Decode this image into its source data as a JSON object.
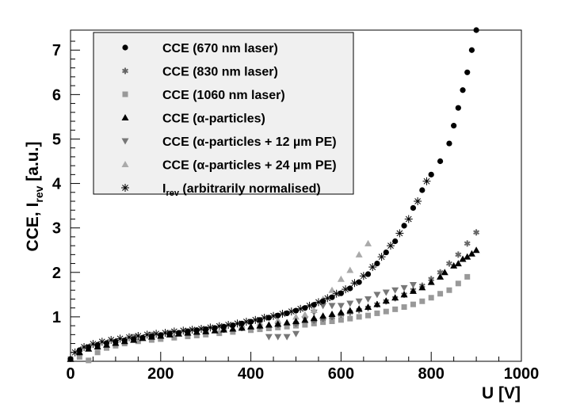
{
  "chart_data": {
    "type": "scatter",
    "xlabel": "U [V]",
    "ylabel": "CCE, I_rev [a.u.]",
    "ylabel_main": "CCE, I",
    "ylabel_sub": "rev",
    "ylabel_unit": " [a.u.]",
    "xlim": [
      0,
      1000
    ],
    "ylim": [
      0,
      7.45
    ],
    "xticks": [
      "0",
      "200",
      "400",
      "600",
      "800",
      "1000"
    ],
    "yticks": [
      "1",
      "2",
      "3",
      "4",
      "5",
      "6",
      "7"
    ],
    "grid": false,
    "legend_position": "top-left",
    "series": [
      {
        "name": "CCE (670 nm laser)",
        "marker": "circle",
        "color": "#000000",
        "x": [
          0,
          20,
          40,
          60,
          80,
          100,
          120,
          140,
          160,
          180,
          200,
          220,
          240,
          260,
          280,
          300,
          320,
          340,
          360,
          380,
          400,
          420,
          440,
          460,
          480,
          500,
          520,
          540,
          560,
          580,
          600,
          620,
          640,
          660,
          680,
          700,
          720,
          740,
          760,
          780,
          800,
          820,
          840,
          850,
          860,
          870,
          880,
          890,
          900
        ],
        "y": [
          0.05,
          0.25,
          0.32,
          0.37,
          0.41,
          0.44,
          0.47,
          0.5,
          0.53,
          0.56,
          0.59,
          0.62,
          0.64,
          0.67,
          0.7,
          0.72,
          0.75,
          0.78,
          0.81,
          0.85,
          0.89,
          0.93,
          0.98,
          1.03,
          1.08,
          1.14,
          1.2,
          1.27,
          1.35,
          1.44,
          1.53,
          1.64,
          1.78,
          1.96,
          2.2,
          2.45,
          2.7,
          3.05,
          3.45,
          3.85,
          4.2,
          4.5,
          4.9,
          5.3,
          5.7,
          6.1,
          6.5,
          7.0,
          7.45
        ]
      },
      {
        "name": "CCE (830 nm laser)",
        "marker": "star",
        "color": "#666666",
        "x": [
          20,
          60,
          100,
          140,
          180,
          220,
          260,
          300,
          340,
          380,
          420,
          460,
          500,
          540,
          560,
          580,
          600,
          620,
          640,
          660,
          680,
          700,
          720,
          740,
          760,
          780,
          800,
          820,
          840,
          860,
          880,
          900
        ],
        "y": [
          0.2,
          0.35,
          0.45,
          0.52,
          0.57,
          0.61,
          0.65,
          0.68,
          0.71,
          0.75,
          0.79,
          0.82,
          0.85,
          0.92,
          0.96,
          1.0,
          1.05,
          1.1,
          1.15,
          1.2,
          1.28,
          1.35,
          1.42,
          1.5,
          1.6,
          1.7,
          1.85,
          2.0,
          2.2,
          2.4,
          2.65,
          2.9
        ]
      },
      {
        "name": "CCE (1060 nm laser)",
        "marker": "square",
        "color": "#999999",
        "x": [
          0,
          20,
          40,
          60,
          80,
          100,
          120,
          150,
          180,
          200,
          230,
          260,
          280,
          300,
          330,
          360,
          400,
          420,
          440,
          460,
          480,
          500,
          520,
          540,
          560,
          580,
          600,
          620,
          640,
          660,
          680,
          700,
          720,
          740,
          760,
          780,
          800,
          820,
          840,
          860,
          880
        ],
        "y": [
          0.05,
          0.1,
          0.02,
          0.2,
          0.3,
          0.35,
          0.4,
          0.45,
          0.48,
          0.5,
          0.53,
          0.56,
          0.58,
          0.6,
          0.63,
          0.66,
          0.7,
          0.72,
          0.74,
          0.76,
          0.78,
          0.8,
          0.82,
          0.85,
          0.88,
          0.9,
          0.93,
          0.96,
          1.0,
          1.03,
          1.08,
          1.12,
          1.17,
          1.22,
          1.28,
          1.35,
          1.43,
          1.52,
          1.6,
          1.75,
          1.9
        ]
      },
      {
        "name": "CCE (α-particles)",
        "marker": "triangle-up",
        "color": "#000000",
        "x": [
          0,
          20,
          40,
          60,
          80,
          100,
          120,
          140,
          160,
          180,
          200,
          220,
          240,
          260,
          280,
          300,
          320,
          340,
          360,
          380,
          400,
          420,
          440,
          460,
          480,
          500,
          520,
          540,
          560,
          580,
          600,
          620,
          640,
          660,
          680,
          700,
          720,
          740,
          760,
          780,
          800,
          820,
          830,
          850,
          860,
          870,
          880,
          890,
          900
        ],
        "y": [
          0.05,
          0.2,
          0.28,
          0.33,
          0.37,
          0.41,
          0.45,
          0.48,
          0.52,
          0.55,
          0.57,
          0.6,
          0.62,
          0.64,
          0.66,
          0.67,
          0.69,
          0.71,
          0.73,
          0.75,
          0.78,
          0.8,
          0.82,
          0.84,
          0.87,
          0.9,
          0.93,
          0.97,
          1.02,
          1.06,
          1.1,
          1.14,
          1.18,
          1.22,
          1.28,
          1.36,
          1.43,
          1.5,
          1.58,
          1.66,
          1.78,
          1.9,
          2.0,
          2.15,
          2.2,
          2.3,
          2.35,
          2.42,
          2.5
        ]
      },
      {
        "name": "CCE (α-particles + 12 µm PE)",
        "marker": "triangle-down",
        "color": "#777777",
        "x": [
          140,
          180,
          220,
          260,
          300,
          340,
          380,
          420,
          440,
          460,
          480,
          500,
          520,
          540,
          560,
          580,
          600,
          620,
          640,
          660,
          680,
          700,
          720,
          740,
          760
        ],
        "y": [
          0.55,
          0.6,
          0.64,
          0.68,
          0.72,
          0.76,
          0.8,
          0.85,
          0.55,
          0.55,
          0.55,
          0.62,
          0.95,
          1.1,
          1.25,
          1.25,
          1.25,
          1.3,
          1.35,
          1.4,
          1.5,
          1.55,
          1.6,
          1.65,
          1.72
        ]
      },
      {
        "name": "CCE (α-particles + 24 µm PE)",
        "marker": "triangle-up",
        "color": "#aaaaaa",
        "x": [
          140,
          180,
          220,
          260,
          300,
          340,
          380,
          420,
          460,
          500,
          520,
          540,
          560,
          580,
          600,
          620,
          640,
          660
        ],
        "y": [
          0.52,
          0.58,
          0.63,
          0.67,
          0.71,
          0.75,
          0.8,
          0.86,
          0.92,
          1.0,
          1.05,
          1.15,
          1.4,
          1.6,
          1.85,
          2.05,
          2.4,
          2.65
        ]
      },
      {
        "name": "I_rev (arbitrarily normalised)",
        "name_main": "I",
        "name_sub": "rev",
        "name_rest": " (arbitrarily normalised)",
        "marker": "asterisk",
        "color": "#000000",
        "x": [
          10,
          30,
          50,
          70,
          90,
          110,
          130,
          150,
          170,
          190,
          210,
          230,
          250,
          270,
          290,
          310,
          330,
          350,
          370,
          390,
          410,
          430,
          450,
          470,
          490,
          510,
          530,
          550,
          570,
          590,
          610,
          630,
          650,
          670,
          690,
          710,
          730,
          750,
          770,
          790
        ],
        "y": [
          0.2,
          0.32,
          0.39,
          0.44,
          0.48,
          0.51,
          0.54,
          0.57,
          0.6,
          0.62,
          0.64,
          0.67,
          0.69,
          0.71,
          0.73,
          0.76,
          0.79,
          0.82,
          0.85,
          0.89,
          0.93,
          0.98,
          1.02,
          1.07,
          1.12,
          1.18,
          1.25,
          1.33,
          1.42,
          1.52,
          1.62,
          1.76,
          1.92,
          2.12,
          2.35,
          2.6,
          2.88,
          3.2,
          3.6,
          4.05
        ]
      }
    ]
  }
}
